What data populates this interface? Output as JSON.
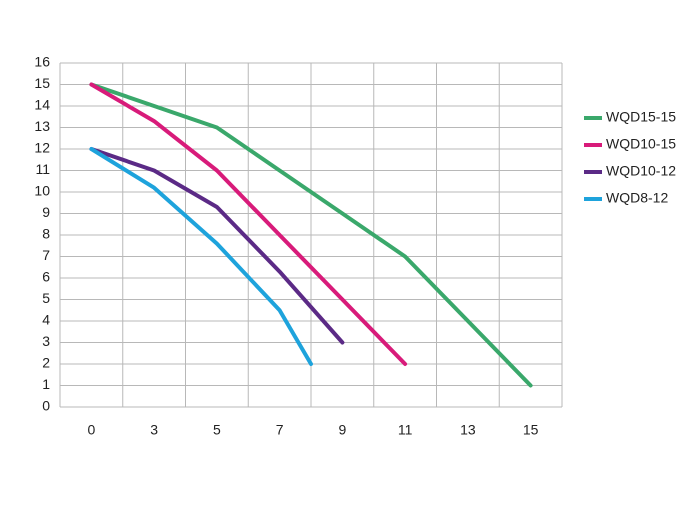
{
  "chart_data": {
    "type": "line",
    "xlim": [
      -1.5,
      16
    ],
    "xticks": [
      0,
      3,
      5,
      7,
      9,
      11,
      13,
      15
    ],
    "ylim": [
      0,
      16
    ],
    "yticks": [
      0,
      1,
      2,
      3,
      4,
      5,
      6,
      7,
      8,
      9,
      10,
      11,
      12,
      13,
      14,
      15,
      16
    ],
    "grid": true,
    "legend": "right",
    "series": [
      {
        "name": "WQD15-15",
        "color": "#3aa86b",
        "x": [
          0,
          3,
          5,
          7,
          9,
          11,
          13,
          15
        ],
        "values": [
          15,
          14,
          13,
          11,
          9,
          7,
          4,
          1
        ]
      },
      {
        "name": "WQD10-15",
        "color": "#d81b7a",
        "x": [
          0,
          3,
          5,
          7,
          9,
          11
        ],
        "values": [
          15,
          13.3,
          11,
          8,
          5,
          2
        ]
      },
      {
        "name": "WQD10-12",
        "color": "#5b2a86",
        "x": [
          0,
          3,
          5,
          7,
          9
        ],
        "values": [
          12,
          11,
          9.3,
          6.3,
          3
        ]
      },
      {
        "name": "WQD8-12",
        "color": "#1ea3dc",
        "x": [
          0,
          3,
          5,
          7,
          8
        ],
        "values": [
          12,
          10.2,
          7.6,
          4.5,
          2
        ]
      }
    ]
  }
}
